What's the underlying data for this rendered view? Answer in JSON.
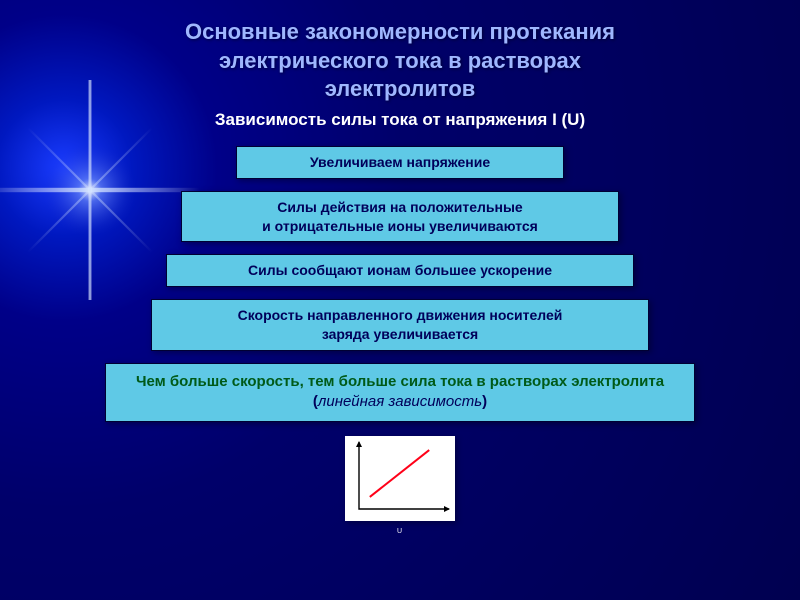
{
  "title_lines": [
    "Основные закономерности протекания",
    "электрического тока в растворах",
    "электролитов"
  ],
  "subtitle": "Зависимость силы тока от напряжения I (U)",
  "boxes": [
    "Увеличиваем напряжение",
    "Силы действия на положительные\nи отрицательные ионы увеличиваются",
    "Силы сообщают ионам большее ускорение",
    "Скорость направленного движения носителей\nзаряда увеличивается"
  ],
  "final_box": {
    "green": "Чем больше скорость, тем больше сила тока в растворах электролита",
    "suffix_plain": " (",
    "italic": "линейная зависимость",
    "suffix_close": ")"
  },
  "chart": {
    "type": "line",
    "xlabel": "U",
    "background_color": "#ffffff",
    "axis_color": "#000000",
    "line_color": "#ff0018",
    "line_width": 2,
    "points": [
      {
        "x": 0.12,
        "y": 0.18
      },
      {
        "x": 0.78,
        "y": 0.88
      }
    ],
    "xlim": [
      0,
      1
    ],
    "ylim": [
      0,
      1
    ]
  },
  "colors": {
    "title_color": "#9fb7ff",
    "subtitle_color": "#ffffff",
    "box_bg": "#5fc9e6",
    "box_text": "#00005a",
    "box_green": "#005a18",
    "arrow_color": "#ffffff",
    "bg_center": "#000088",
    "bg_edge": "#000050"
  },
  "arrow": {
    "shaft_height": 10,
    "head_width": 12,
    "head_height": 8,
    "color": "#ffffff"
  }
}
